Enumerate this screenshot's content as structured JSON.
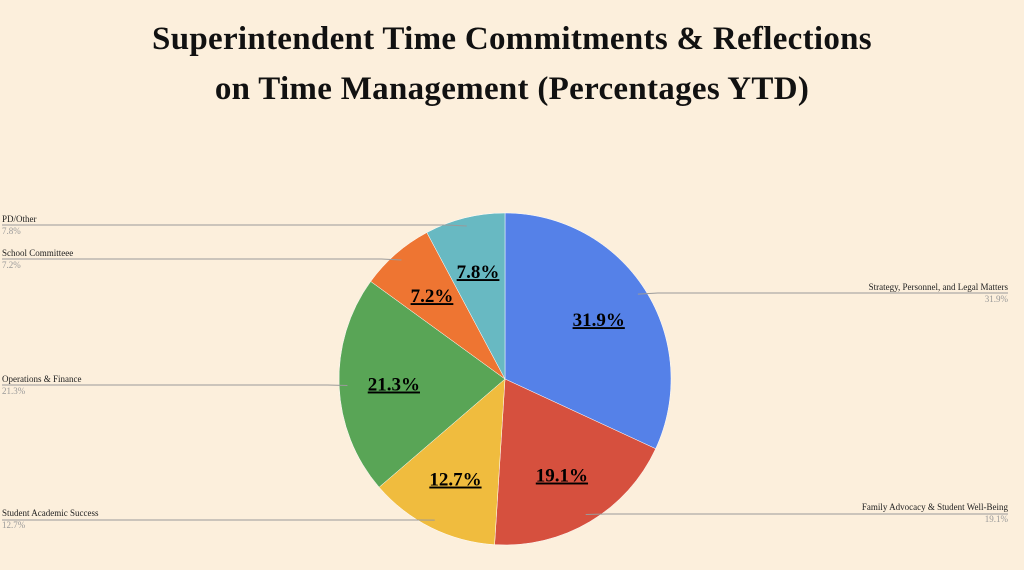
{
  "chart_data": {
    "type": "pie",
    "title_line1": "Superintendent Time Commitments & Reflections",
    "title_line2": "on Time Management (Percentages YTD)",
    "legend": "none",
    "slices": [
      {
        "label": "Strategy, Personnel, and Legal Matters",
        "value": 31.9,
        "display": "31.9%",
        "color": "#5581e8"
      },
      {
        "label": "Family Advocacy & Student Well-Being",
        "value": 19.1,
        "display": "19.1%",
        "color": "#d6503e"
      },
      {
        "label": "Student Academic Success",
        "value": 12.7,
        "display": "12.7%",
        "color": "#f0bc3e"
      },
      {
        "label": "Operations & Finance",
        "value": 21.3,
        "display": "21.3%",
        "color": "#59a556"
      },
      {
        "label": "School Committeee",
        "value": 7.2,
        "display": "7.2%",
        "color": "#ee7532"
      },
      {
        "label": "PD/Other",
        "value": 7.8,
        "display": "7.8%",
        "color": "#68b9c2"
      }
    ]
  }
}
